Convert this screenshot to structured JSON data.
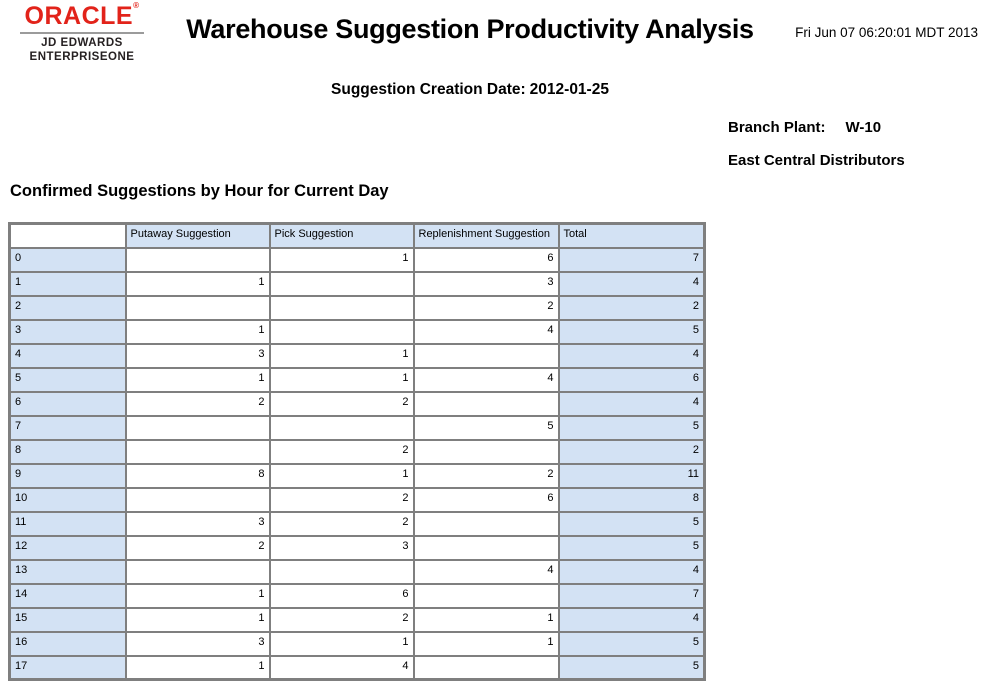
{
  "logo": {
    "brand": "ORACLE",
    "registered": "®",
    "line1": "JD EDWARDS",
    "line2": "ENTERPRISEONE",
    "brand_color": "#e2231a"
  },
  "header": {
    "title": "Warehouse Suggestion Productivity Analysis",
    "timestamp": "Fri Jun 07 06:20:01 MDT 2013"
  },
  "meta": {
    "creation_date_label": "Suggestion Creation Date:",
    "creation_date_value": "2012-01-25",
    "branch_plant_label": "Branch Plant:",
    "branch_plant_value": "W-10",
    "branch_plant_name": "East Central Distributors"
  },
  "section": {
    "heading": "Confirmed Suggestions by Hour for Current Day"
  },
  "table": {
    "columns": [
      "",
      "Putaway Suggestion",
      "Pick Suggestion",
      "Replenishment Suggestion",
      "Total"
    ],
    "rows": [
      {
        "hour": "0",
        "putaway": "",
        "pick": "1",
        "replenishment": "6",
        "total": "7"
      },
      {
        "hour": "1",
        "putaway": "1",
        "pick": "",
        "replenishment": "3",
        "total": "4"
      },
      {
        "hour": "2",
        "putaway": "",
        "pick": "",
        "replenishment": "2",
        "total": "2"
      },
      {
        "hour": "3",
        "putaway": "1",
        "pick": "",
        "replenishment": "4",
        "total": "5"
      },
      {
        "hour": "4",
        "putaway": "3",
        "pick": "1",
        "replenishment": "",
        "total": "4"
      },
      {
        "hour": "5",
        "putaway": "1",
        "pick": "1",
        "replenishment": "4",
        "total": "6"
      },
      {
        "hour": "6",
        "putaway": "2",
        "pick": "2",
        "replenishment": "",
        "total": "4"
      },
      {
        "hour": "7",
        "putaway": "",
        "pick": "",
        "replenishment": "5",
        "total": "5"
      },
      {
        "hour": "8",
        "putaway": "",
        "pick": "2",
        "replenishment": "",
        "total": "2"
      },
      {
        "hour": "9",
        "putaway": "8",
        "pick": "1",
        "replenishment": "2",
        "total": "11"
      },
      {
        "hour": "10",
        "putaway": "",
        "pick": "2",
        "replenishment": "6",
        "total": "8"
      },
      {
        "hour": "11",
        "putaway": "3",
        "pick": "2",
        "replenishment": "",
        "total": "5"
      },
      {
        "hour": "12",
        "putaway": "2",
        "pick": "3",
        "replenishment": "",
        "total": "5"
      },
      {
        "hour": "13",
        "putaway": "",
        "pick": "",
        "replenishment": "4",
        "total": "4"
      },
      {
        "hour": "14",
        "putaway": "1",
        "pick": "6",
        "replenishment": "",
        "total": "7"
      },
      {
        "hour": "15",
        "putaway": "1",
        "pick": "2",
        "replenishment": "1",
        "total": "4"
      },
      {
        "hour": "16",
        "putaway": "3",
        "pick": "1",
        "replenishment": "1",
        "total": "5"
      },
      {
        "hour": "17",
        "putaway": "1",
        "pick": "4",
        "replenishment": "",
        "total": "5"
      }
    ],
    "colors": {
      "cell_blue": "#d3e2f4",
      "border_gray": "#7f7f7f",
      "white_cell": "#ffffff"
    }
  }
}
